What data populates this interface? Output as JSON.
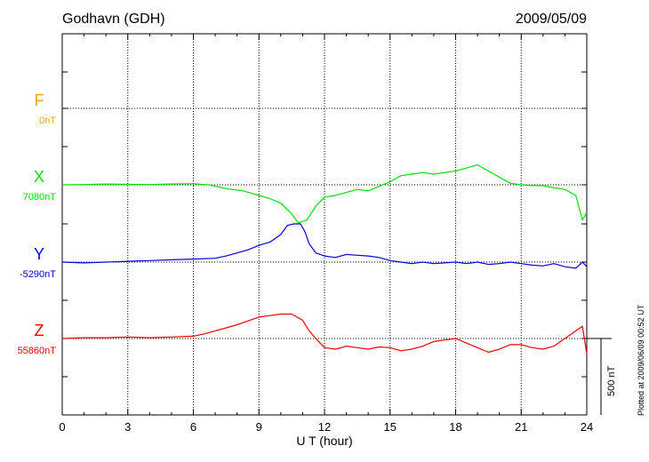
{
  "header": {
    "station": "Godhavn (GDH)",
    "date": "2009/05/09"
  },
  "plotted_note": "Plotted at 2009/06/09 00:52 UT",
  "scale_label": "500 nT",
  "chart_data": {
    "type": "line",
    "xlabel": "U T (hour)",
    "xlim": [
      0,
      24
    ],
    "x_ticks": [
      "0",
      "3",
      "6",
      "9",
      "12",
      "15",
      "18",
      "21",
      "24"
    ],
    "grid": true,
    "scale_bar_nT": 500,
    "series": [
      {
        "name": "F",
        "baseline": "0nT",
        "color": "#e8a800",
        "offset_nT": 0,
        "x": [],
        "values": []
      },
      {
        "name": "X",
        "baseline": "7080nT",
        "color": "#00e000",
        "x": [
          0,
          1,
          2,
          3,
          4,
          5,
          6,
          6.7,
          7.5,
          8.3,
          9,
          9.5,
          10,
          10.5,
          10.8,
          11.2,
          11.6,
          12,
          12.5,
          13,
          13.5,
          14,
          14.5,
          15,
          15.5,
          16,
          16.5,
          17,
          17.5,
          18,
          18.5,
          19,
          19.5,
          20,
          20.5,
          21,
          21.5,
          22,
          22.5,
          23,
          23.5,
          23.8,
          24
        ],
        "values": [
          7080,
          7082,
          7085,
          7083,
          7082,
          7085,
          7087,
          7080,
          7055,
          7040,
          7010,
          6990,
          6960,
          6890,
          6830,
          6850,
          6940,
          7000,
          7010,
          7030,
          7050,
          7040,
          7070,
          7100,
          7140,
          7150,
          7160,
          7150,
          7160,
          7170,
          7190,
          7210,
          7170,
          7130,
          7090,
          7080,
          7075,
          7075,
          7060,
          7050,
          7010,
          6850,
          6900
        ]
      },
      {
        "name": "Y",
        "baseline": "-5290nT",
        "color": "#0000dd",
        "x": [
          0,
          1,
          2,
          3,
          4,
          5,
          6,
          7,
          7.5,
          8,
          8.5,
          9,
          9.5,
          10,
          10.3,
          10.6,
          10.9,
          11.1,
          11.3,
          11.6,
          12,
          12.5,
          13,
          13.5,
          14,
          14.5,
          15,
          15.5,
          16,
          16.5,
          17,
          17.5,
          18,
          18.5,
          19,
          19.5,
          20,
          20.5,
          21,
          21.5,
          22,
          22.5,
          23,
          23.5,
          23.8,
          24
        ],
        "values": [
          -5300,
          -5305,
          -5300,
          -5295,
          -5290,
          -5285,
          -5280,
          -5275,
          -5260,
          -5240,
          -5220,
          -5190,
          -5170,
          -5120,
          -5060,
          -5050,
          -5050,
          -5100,
          -5180,
          -5240,
          -5260,
          -5270,
          -5250,
          -5255,
          -5260,
          -5270,
          -5290,
          -5300,
          -5310,
          -5300,
          -5310,
          -5305,
          -5300,
          -5310,
          -5300,
          -5315,
          -5310,
          -5300,
          -5310,
          -5320,
          -5325,
          -5310,
          -5330,
          -5340,
          -5300,
          -5330
        ]
      },
      {
        "name": "Z",
        "baseline": "55860nT",
        "color": "#ee0000",
        "x": [
          0,
          1,
          2,
          3,
          4,
          5,
          6,
          6.5,
          7,
          7.5,
          8,
          8.5,
          9,
          9.5,
          10,
          10.5,
          11,
          11.3,
          11.6,
          12,
          12.5,
          13,
          13.5,
          14,
          14.5,
          15,
          15.5,
          16,
          16.5,
          17,
          17.5,
          18,
          18.5,
          19,
          19.5,
          20,
          20.5,
          21,
          21.5,
          22,
          22.5,
          23,
          23.5,
          23.8,
          24
        ],
        "values": [
          55860,
          55865,
          55865,
          55870,
          55865,
          55870,
          55875,
          55890,
          55910,
          55930,
          55950,
          55975,
          56000,
          56010,
          56020,
          56020,
          55980,
          55910,
          55860,
          55800,
          55790,
          55810,
          55800,
          55790,
          55805,
          55800,
          55780,
          55790,
          55810,
          55840,
          55850,
          55860,
          55830,
          55800,
          55770,
          55790,
          55820,
          55820,
          55800,
          55790,
          55810,
          55860,
          55910,
          55940,
          55760
        ]
      }
    ]
  }
}
